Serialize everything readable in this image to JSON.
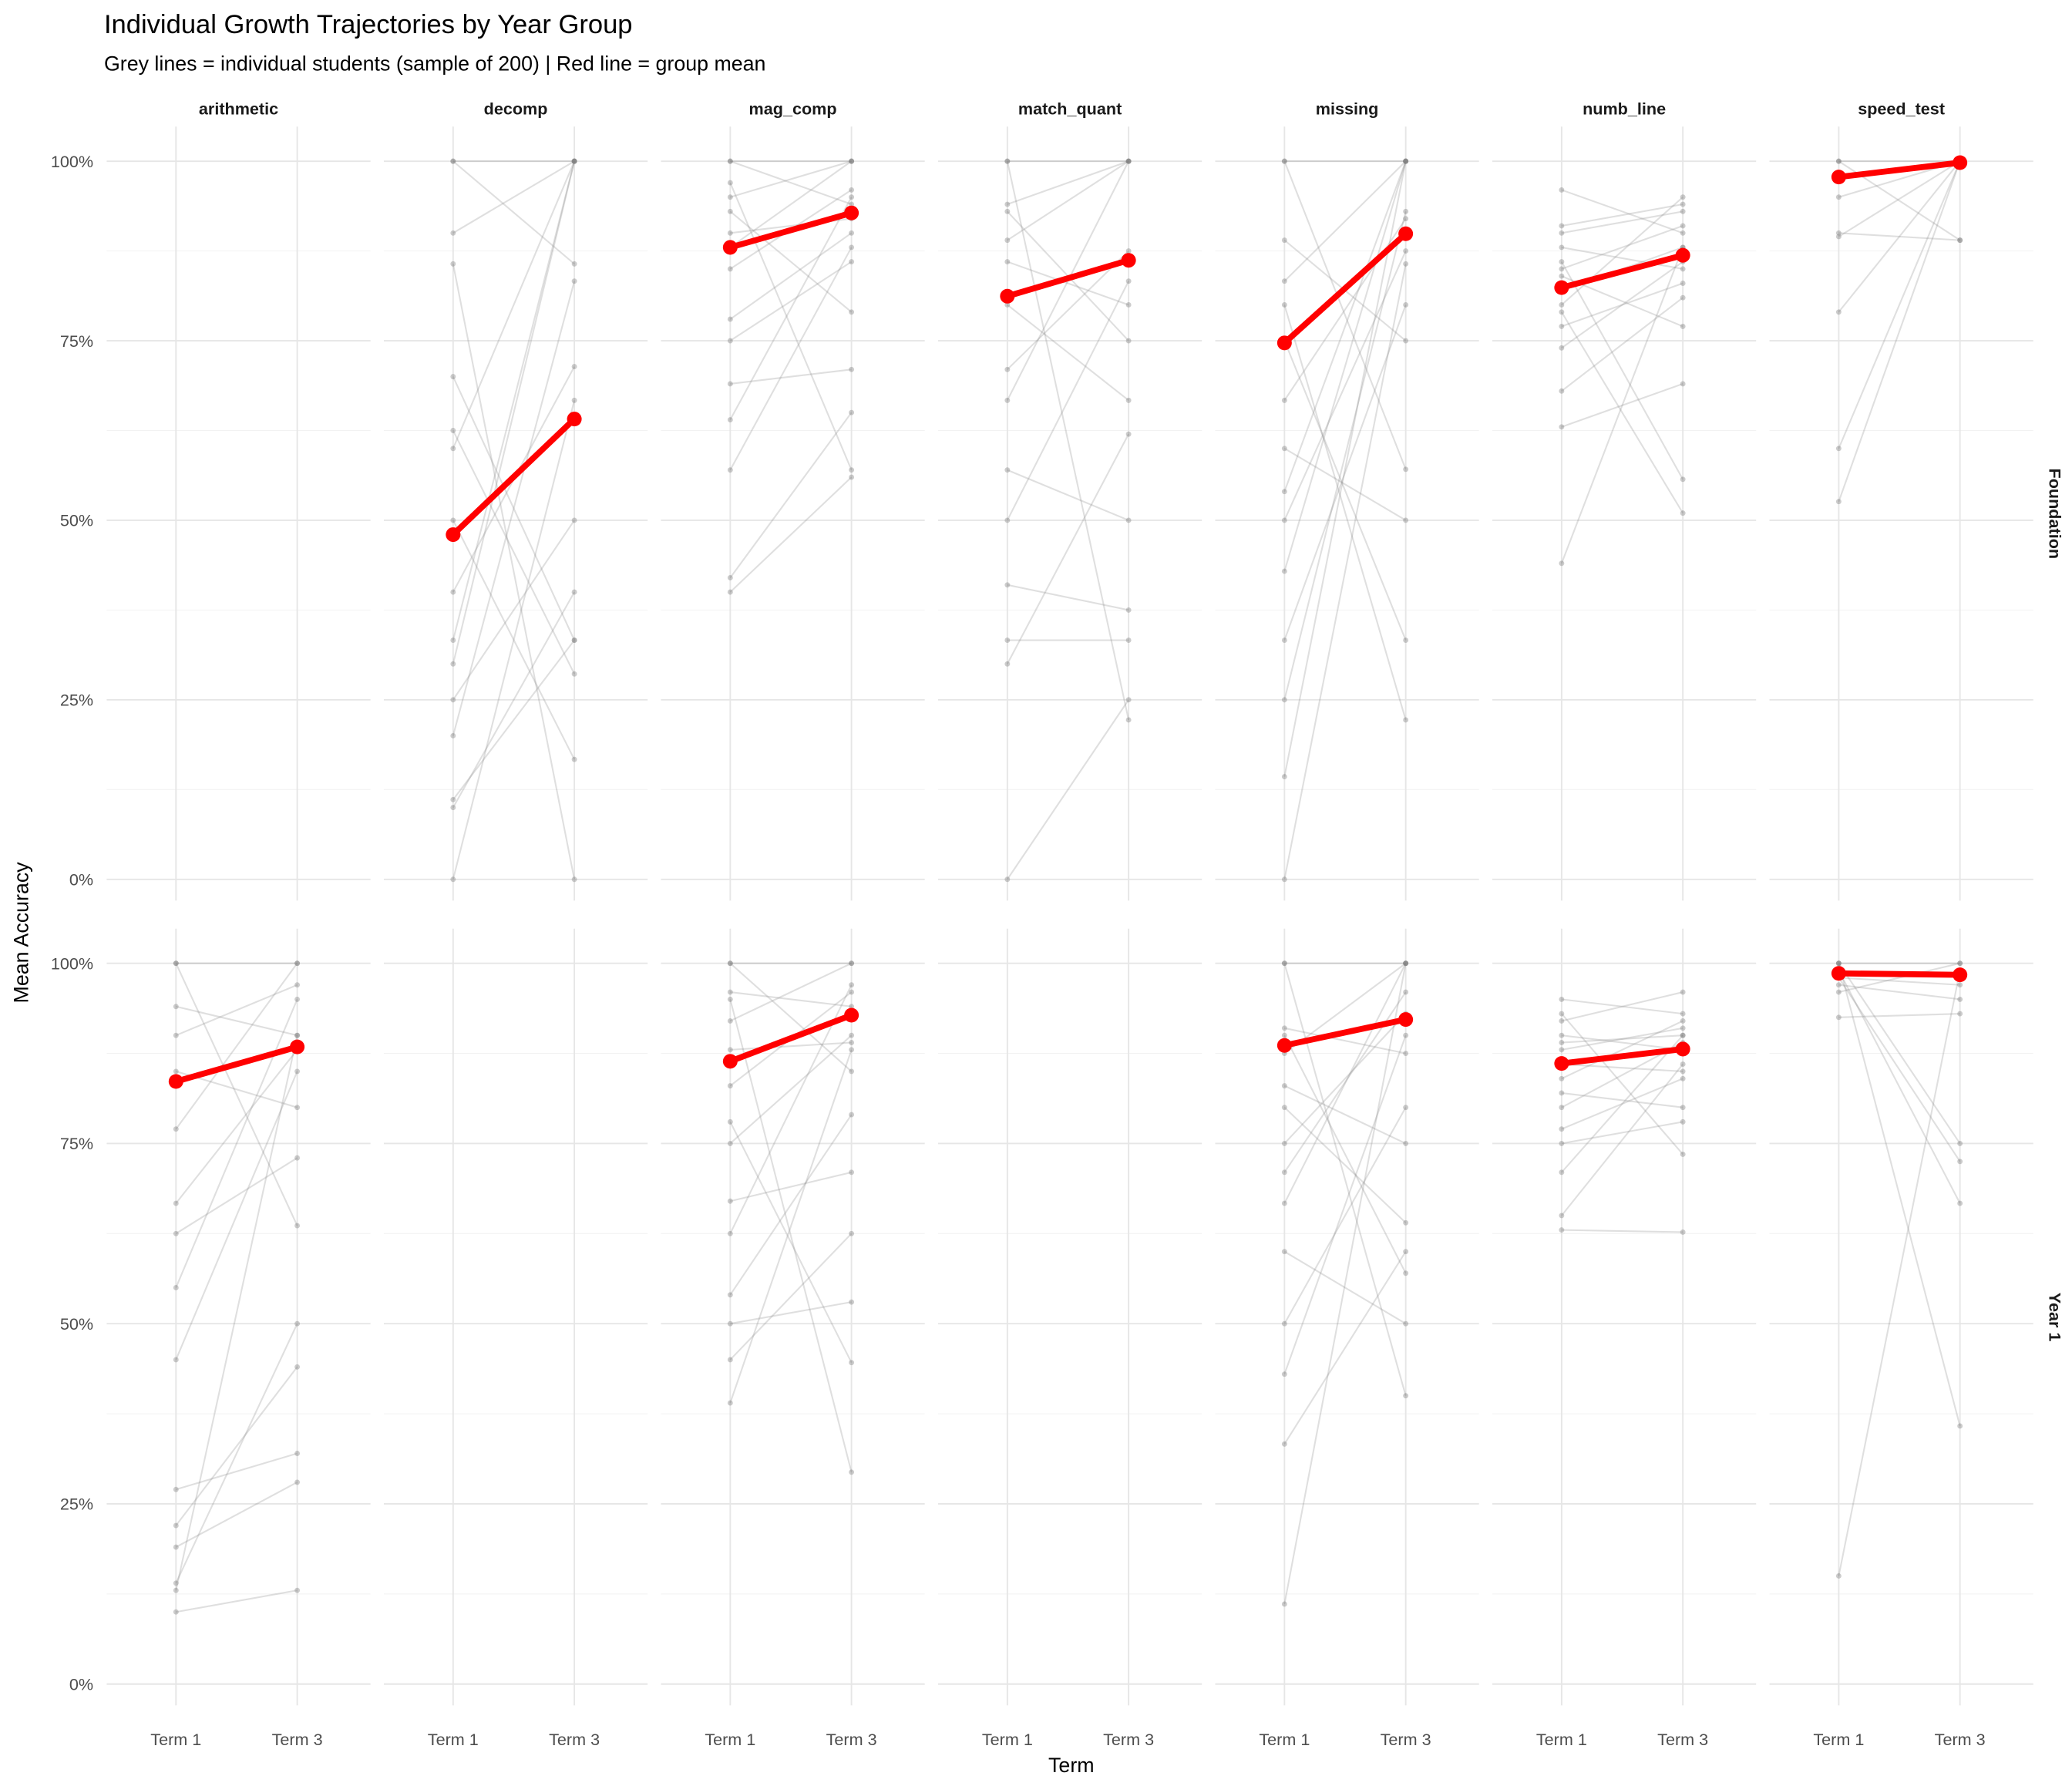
{
  "chart_data": {
    "type": "line",
    "title": "Individual Growth Trajectories by Year Group",
    "subtitle": "Grey lines = individual students (sample of 200) | Red line = group mean",
    "xlabel": "Term",
    "ylabel": "Mean Accuracy",
    "x_categories": [
      "Term 1",
      "Term 3"
    ],
    "y_ticks": [
      "0%",
      "25%",
      "50%",
      "75%",
      "100%"
    ],
    "ylim": [
      0,
      100
    ],
    "grid": true,
    "facets_columns": [
      "arithmetic",
      "decomp",
      "mag_comp",
      "match_quant",
      "missing",
      "numb_line",
      "speed_test"
    ],
    "facets_rows": [
      "Foundation",
      "Year 1"
    ],
    "colors": {
      "mean": "#ff0000",
      "individual": "#808080",
      "grid": "#ebebeb"
    },
    "panels": [
      {
        "row": "Foundation",
        "task": "arithmetic",
        "mean": null,
        "individuals": []
      },
      {
        "row": "Foundation",
        "task": "decomp",
        "mean": [
          48.0,
          64.1
        ],
        "individuals": [
          [
            100,
            85.7
          ],
          [
            90,
            100
          ],
          [
            70,
            33.3
          ],
          [
            60,
            100
          ],
          [
            50,
            16.7
          ],
          [
            40,
            71.4
          ],
          [
            33.3,
            100
          ],
          [
            25,
            50
          ],
          [
            20,
            83.3
          ],
          [
            10,
            40
          ],
          [
            0,
            66.7
          ],
          [
            85.7,
            0
          ],
          [
            62.5,
            28.6
          ],
          [
            30,
            100
          ],
          [
            11.1,
            33.3
          ],
          [
            100,
            100
          ]
        ]
      },
      {
        "row": "Foundation",
        "task": "mag_comp",
        "mean": [
          88.0,
          92.8
        ],
        "individuals": [
          [
            100,
            100
          ],
          [
            95,
            100
          ],
          [
            90,
            92
          ],
          [
            85,
            96
          ],
          [
            78,
            90
          ],
          [
            69,
            71
          ],
          [
            57,
            88
          ],
          [
            42,
            65
          ],
          [
            40,
            56
          ],
          [
            100,
            94
          ],
          [
            93,
            79
          ],
          [
            88,
            100
          ],
          [
            75,
            86
          ],
          [
            64,
            95
          ],
          [
            97,
            57
          ]
        ]
      },
      {
        "row": "Foundation",
        "task": "match_quant",
        "mean": [
          81.2,
          86.2
        ],
        "individuals": [
          [
            100,
            100
          ],
          [
            93,
            75
          ],
          [
            89,
            100
          ],
          [
            80,
            66.7
          ],
          [
            71,
            87.5
          ],
          [
            66.7,
            100
          ],
          [
            57,
            50
          ],
          [
            50,
            83.3
          ],
          [
            41,
            37.5
          ],
          [
            33.3,
            33.3
          ],
          [
            30,
            62
          ],
          [
            0,
            25
          ],
          [
            100,
            22.2
          ],
          [
            86,
            80
          ],
          [
            94,
            100
          ]
        ]
      },
      {
        "row": "Foundation",
        "task": "missing",
        "mean": [
          74.7,
          89.9
        ],
        "individuals": [
          [
            100,
            100
          ],
          [
            89,
            75
          ],
          [
            83.3,
            100
          ],
          [
            66.7,
            92
          ],
          [
            50,
            87.5
          ],
          [
            42.9,
            100
          ],
          [
            33.3,
            80
          ],
          [
            25,
            93
          ],
          [
            14.3,
            100
          ],
          [
            0,
            85.7
          ],
          [
            60,
            50
          ],
          [
            75,
            33.3
          ],
          [
            100,
            57.1
          ],
          [
            80,
            22.2
          ],
          [
            54,
            100
          ]
        ]
      },
      {
        "row": "Foundation",
        "task": "numb_line",
        "mean": [
          82.4,
          86.9
        ],
        "individuals": [
          [
            96,
            90
          ],
          [
            90,
            93
          ],
          [
            88,
            85
          ],
          [
            85,
            91
          ],
          [
            82,
            88
          ],
          [
            80,
            95
          ],
          [
            77,
            83
          ],
          [
            74,
            86
          ],
          [
            68,
            81
          ],
          [
            63,
            69
          ],
          [
            44,
            88
          ],
          [
            86,
            55.7
          ],
          [
            79,
            51
          ],
          [
            91,
            94
          ],
          [
            84,
            77
          ]
        ]
      },
      {
        "row": "Foundation",
        "task": "speed_test",
        "mean": [
          97.8,
          99.8
        ],
        "individuals": [
          [
            100,
            100
          ],
          [
            95,
            100
          ],
          [
            90,
            89
          ],
          [
            89.5,
            100
          ],
          [
            79,
            100
          ],
          [
            60,
            100
          ],
          [
            52.6,
            100
          ],
          [
            100,
            89
          ]
        ]
      },
      {
        "row": "Year 1",
        "task": "arithmetic",
        "mean": [
          83.6,
          88.4
        ],
        "individuals": [
          [
            100,
            100
          ],
          [
            94,
            90
          ],
          [
            90,
            97
          ],
          [
            85,
            80
          ],
          [
            77,
            100
          ],
          [
            66.7,
            88
          ],
          [
            62.5,
            73
          ],
          [
            55,
            95
          ],
          [
            45,
            85
          ],
          [
            27,
            32
          ],
          [
            22,
            44
          ],
          [
            19,
            28
          ],
          [
            14,
            50
          ],
          [
            10,
            13
          ],
          [
            13,
            90
          ],
          [
            100,
            63.6
          ]
        ]
      },
      {
        "row": "Year 1",
        "task": "decomp",
        "mean": null,
        "individuals": []
      },
      {
        "row": "Year 1",
        "task": "mag_comp",
        "mean": [
          86.4,
          92.8
        ],
        "individuals": [
          [
            100,
            100
          ],
          [
            96,
            94
          ],
          [
            92,
            100
          ],
          [
            88,
            89
          ],
          [
            83,
            96
          ],
          [
            75,
            90
          ],
          [
            67,
            71
          ],
          [
            62.5,
            97
          ],
          [
            54,
            79
          ],
          [
            50,
            53
          ],
          [
            45,
            62.5
          ],
          [
            39,
            88
          ],
          [
            95,
            29.4
          ],
          [
            78,
            44.6
          ],
          [
            100,
            85
          ]
        ]
      },
      {
        "row": "Year 1",
        "task": "match_quant",
        "mean": null,
        "individuals": []
      },
      {
        "row": "Year 1",
        "task": "missing",
        "mean": [
          88.6,
          92.2
        ],
        "individuals": [
          [
            100,
            100
          ],
          [
            91,
            87.5
          ],
          [
            87.5,
            100
          ],
          [
            83,
            75
          ],
          [
            75,
            93
          ],
          [
            66.7,
            100
          ],
          [
            60,
            50
          ],
          [
            50,
            80
          ],
          [
            43,
            90
          ],
          [
            33.3,
            60
          ],
          [
            11.1,
            100
          ],
          [
            100,
            40
          ],
          [
            90,
            57
          ],
          [
            80,
            64
          ],
          [
            71,
            96
          ]
        ]
      },
      {
        "row": "Year 1",
        "task": "numb_line",
        "mean": [
          86.1,
          88.1
        ],
        "individuals": [
          [
            95,
            93
          ],
          [
            92,
            96
          ],
          [
            90,
            88
          ],
          [
            88,
            91
          ],
          [
            86,
            85
          ],
          [
            84,
            92
          ],
          [
            82,
            80
          ],
          [
            80,
            89
          ],
          [
            77,
            84
          ],
          [
            75,
            78
          ],
          [
            71,
            90
          ],
          [
            65,
            86
          ],
          [
            63,
            62.7
          ],
          [
            93,
            73.5
          ],
          [
            89,
            90
          ]
        ]
      },
      {
        "row": "Year 1",
        "task": "speed_test",
        "mean": [
          98.6,
          98.4
        ],
        "individuals": [
          [
            100,
            100
          ],
          [
            98,
            97
          ],
          [
            97,
            95
          ],
          [
            96,
            100
          ],
          [
            92.5,
            93
          ],
          [
            100,
            75
          ],
          [
            99,
            66.7
          ],
          [
            98,
            72.5
          ],
          [
            15,
            99
          ],
          [
            100,
            35.8
          ]
        ]
      }
    ]
  }
}
